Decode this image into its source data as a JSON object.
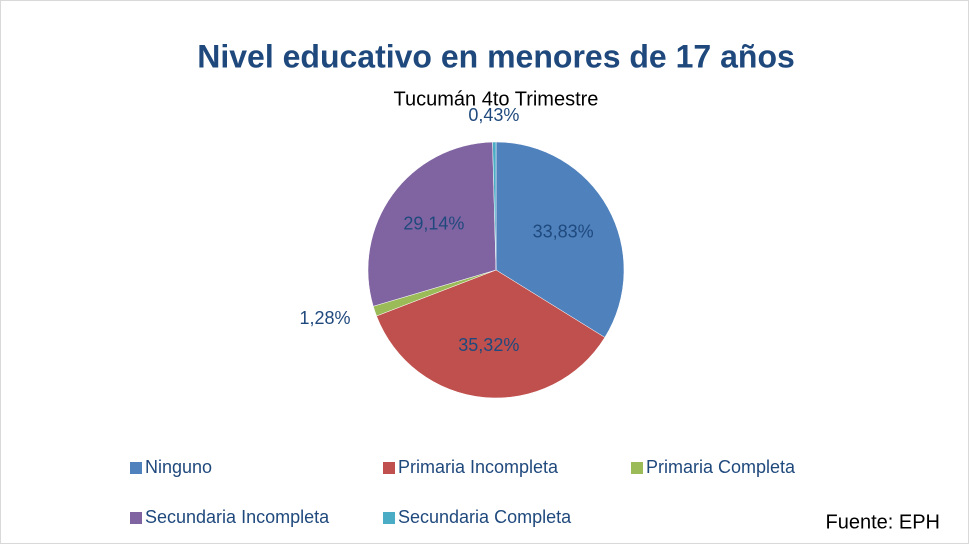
{
  "chart_data": {
    "type": "pie",
    "title": "Nivel educativo en menores de 17 años",
    "subtitle": "Tucumán 4to Trimestre",
    "categories": [
      "Ninguno",
      "Primaria Incompleta",
      "Primaria Completa",
      "Secundaria Incompleta",
      "Secundaria Completa"
    ],
    "values": [
      33.83,
      35.32,
      1.28,
      29.14,
      0.43
    ],
    "value_labels": [
      "33,83%",
      "35,32%",
      "1,28%",
      "29,14%",
      "0,43%"
    ],
    "colors": [
      "#4f81bd",
      "#c0504d",
      "#9bbb59",
      "#8064a2",
      "#4bacc6"
    ],
    "legend": "bottom",
    "source": "Fuente: EPH"
  }
}
